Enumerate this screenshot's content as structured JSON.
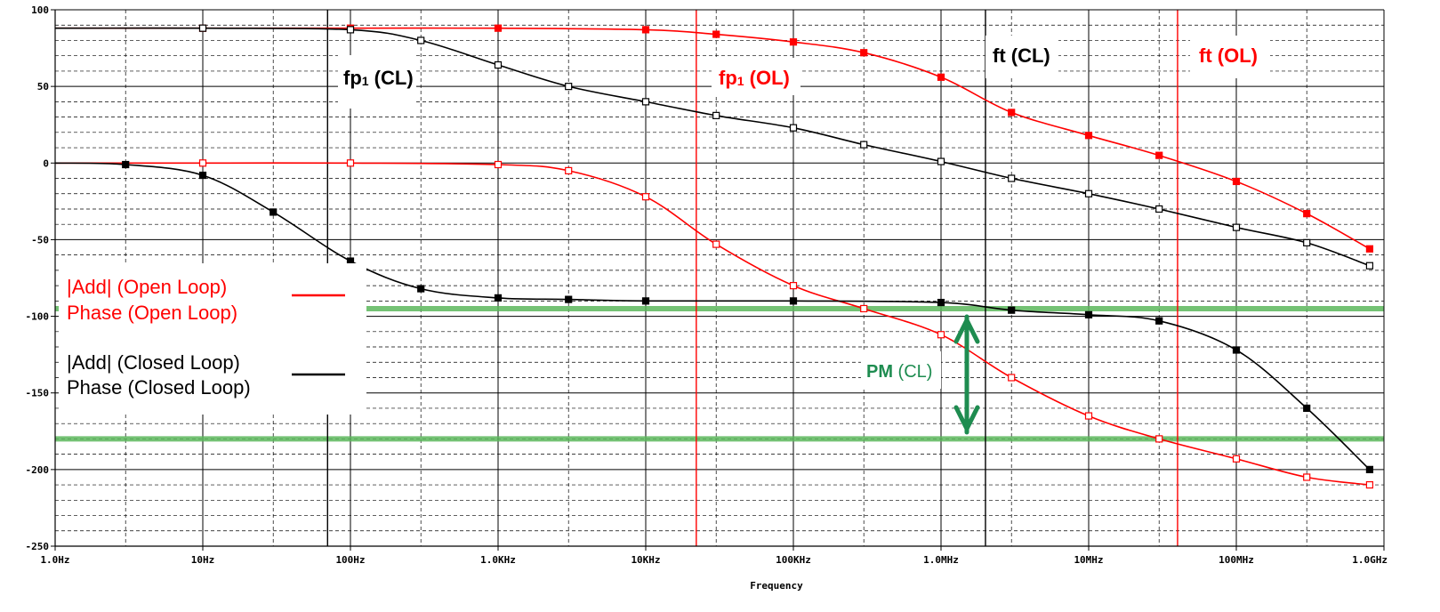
{
  "chart_data": {
    "type": "line",
    "xlabel": "Frequency",
    "x_scale": "log",
    "x_ticks": [
      "1.0Hz",
      "10Hz",
      "100Hz",
      "1.0KHz",
      "10KHz",
      "100KHz",
      "1.0MHz",
      "10MHz",
      "100MHz",
      "1.0GHz"
    ],
    "y_ticks": [
      "100",
      "50",
      "0",
      "-50",
      "-100",
      "-150",
      "-200",
      "-250"
    ],
    "ylim": [
      -250,
      100
    ],
    "xlim_hz": [
      1,
      1000000000
    ],
    "grid": true,
    "series": [
      {
        "color": "#ff0000",
        "marker": "square-filled",
        "x": [
          1,
          10,
          100,
          1000,
          10000,
          30000,
          100000,
          300000,
          1000000,
          3000000,
          10000000,
          30000000,
          100000000,
          300000000,
          800000000
        ],
        "y": [
          88,
          88,
          88,
          88,
          87,
          84,
          79,
          72,
          56,
          33,
          18,
          5,
          -12,
          -33,
          -56
        ]
      },
      {
        "color": "#ff0000",
        "marker": "square-open",
        "x": [
          1,
          10,
          100,
          1000,
          3000,
          10000,
          30000,
          100000,
          300000,
          1000000,
          3000000,
          10000000,
          30000000,
          100000000,
          300000000,
          800000000
        ],
        "y": [
          0,
          0,
          0,
          -1,
          -5,
          -22,
          -53,
          -80,
          -95,
          -112,
          -140,
          -165,
          -180,
          -193,
          -205,
          -210
        ]
      },
      {
        "color": "#000000",
        "marker": "square-filled",
        "x": [
          1,
          3,
          10,
          30,
          100,
          300,
          1000,
          3000,
          10000,
          100000,
          1000000,
          3000000,
          10000000,
          30000000,
          100000000,
          300000000,
          800000000
        ],
        "y": [
          0,
          -1,
          -8,
          -32,
          -64,
          -82,
          -88,
          -89,
          -90,
          -90,
          -91,
          -96,
          -99,
          -103,
          -122,
          -160,
          -200
        ]
      },
      {
        "color": "#000000",
        "marker": "square-open",
        "x": [
          1,
          10,
          100,
          300,
          1000,
          3000,
          10000,
          30000,
          100000,
          300000,
          1000000,
          3000000,
          10000000,
          30000000,
          100000000,
          300000000,
          800000000
        ],
        "y": [
          88,
          88,
          87,
          80,
          64,
          50,
          40,
          31,
          23,
          12,
          1,
          -10,
          -20,
          -30,
          -42,
          -52,
          -67
        ]
      }
    ],
    "vertical_lines": [
      {
        "color": "#000000",
        "x": 70
      },
      {
        "color": "#ff0000",
        "x": 22000
      },
      {
        "color": "#000000",
        "x": 2000000
      },
      {
        "color": "#ff0000",
        "x": 40000000
      }
    ],
    "horizontal_lines": [
      {
        "color": "#5cb85c",
        "y": -95
      },
      {
        "color": "#5cb85c",
        "y": -180
      }
    ],
    "annotations": {
      "fp1_cl": {
        "main": "fp",
        "sub": "1",
        "rest": " (CL)",
        "color": "#000000"
      },
      "fp1_ol": {
        "main": "fp",
        "sub": "1",
        "rest": " (OL)",
        "color": "#ff0000"
      },
      "ft_cl": {
        "text": "ft (CL)",
        "color": "#000000"
      },
      "ft_ol": {
        "text": "ft (OL)",
        "color": "#ff0000"
      },
      "pm": {
        "bold": "PM",
        "rest": " (CL)",
        "color": "#1e8c50"
      }
    },
    "legend": {
      "position": "left-middle",
      "entries": [
        {
          "lines": [
            "|Add|  (Open Loop)",
            "Phase (Open Loop)"
          ],
          "color": "#ff0000"
        },
        {
          "lines": [
            "|Add|  (Closed Loop)",
            "Phase (Closed Loop)"
          ],
          "color": "#000000"
        }
      ]
    }
  }
}
